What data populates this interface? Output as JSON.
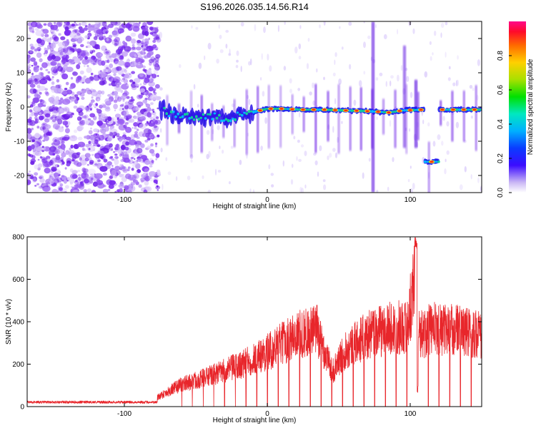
{
  "title": "S196.2026.035.14.56.R14",
  "colors": {
    "snr_line": "#e8262b",
    "frame": "#000000",
    "scatter": "#7a2cf0"
  },
  "chart_data": [
    {
      "type": "heatmap",
      "name": "spectrogram",
      "xlabel": "Height of straight line (km)",
      "ylabel": "Frequency (Hz)",
      "xlim": [
        -168,
        150
      ],
      "ylim": [
        -25,
        25
      ],
      "x_ticks": [
        -100,
        0,
        100
      ],
      "x_tick_labels": [
        "-100",
        "0",
        "100"
      ],
      "y_ticks": [
        20,
        10,
        0,
        -10,
        -20
      ],
      "y_tick_labels": [
        "20",
        "10",
        "0",
        "-10",
        "-20"
      ],
      "noise_region_x": [
        -168,
        -76
      ],
      "tone_track": [
        {
          "x": -70,
          "f": -2.0
        },
        {
          "x": -55,
          "f": -2.5
        },
        {
          "x": -40,
          "f": -3.0
        },
        {
          "x": -25,
          "f": -3.2
        },
        {
          "x": -10,
          "f": -1.5
        },
        {
          "x": 0,
          "f": -0.5
        },
        {
          "x": 10,
          "f": -0.5
        },
        {
          "x": 25,
          "f": -0.8
        },
        {
          "x": 40,
          "f": -0.8
        },
        {
          "x": 55,
          "f": -1.0
        },
        {
          "x": 70,
          "f": -1.2
        },
        {
          "x": 85,
          "f": -1.6
        },
        {
          "x": 95,
          "f": -1.0
        },
        {
          "x": 108,
          "f": -0.8
        },
        {
          "x": 115,
          "f": -16.0
        },
        {
          "x": 125,
          "f": -0.8
        },
        {
          "x": 140,
          "f": -0.8
        },
        {
          "x": 150,
          "f": -0.8
        }
      ],
      "colorbar": {
        "label": "Normalized spectral amplitude",
        "range": [
          0.0,
          1.0
        ],
        "ticks": [
          0.0,
          0.2,
          0.4,
          0.6,
          0.8
        ],
        "tick_labels": [
          "0.0",
          "0.2",
          "0.4",
          "0.6",
          "0.8"
        ]
      }
    },
    {
      "type": "line",
      "name": "snr",
      "xlabel": "Height of straight line (km)",
      "ylabel": "SNR (10 * v/v)",
      "xlim": [
        -168,
        150
      ],
      "ylim": [
        0,
        800
      ],
      "x_ticks": [
        -100,
        0,
        100
      ],
      "x_tick_labels": [
        "-100",
        "0",
        "100"
      ],
      "y_ticks": [
        0,
        200,
        400,
        600,
        800
      ],
      "y_tick_labels": [
        "0",
        "200",
        "400",
        "600",
        "800"
      ],
      "envelope": [
        {
          "x": -168,
          "y": 20
        },
        {
          "x": -80,
          "y": 20
        },
        {
          "x": -76,
          "y": 60
        },
        {
          "x": -60,
          "y": 130
        },
        {
          "x": -40,
          "y": 180
        },
        {
          "x": -20,
          "y": 240
        },
        {
          "x": 0,
          "y": 320
        },
        {
          "x": 20,
          "y": 420
        },
        {
          "x": 35,
          "y": 450
        },
        {
          "x": 42,
          "y": 280
        },
        {
          "x": 46,
          "y": 210
        },
        {
          "x": 55,
          "y": 340
        },
        {
          "x": 70,
          "y": 420
        },
        {
          "x": 85,
          "y": 460
        },
        {
          "x": 98,
          "y": 470
        },
        {
          "x": 104,
          "y": 800
        },
        {
          "x": 106,
          "y": 420
        },
        {
          "x": 115,
          "y": 460
        },
        {
          "x": 135,
          "y": 450
        },
        {
          "x": 150,
          "y": 420
        }
      ],
      "spike_x": 104,
      "spike_y": 800
    }
  ]
}
